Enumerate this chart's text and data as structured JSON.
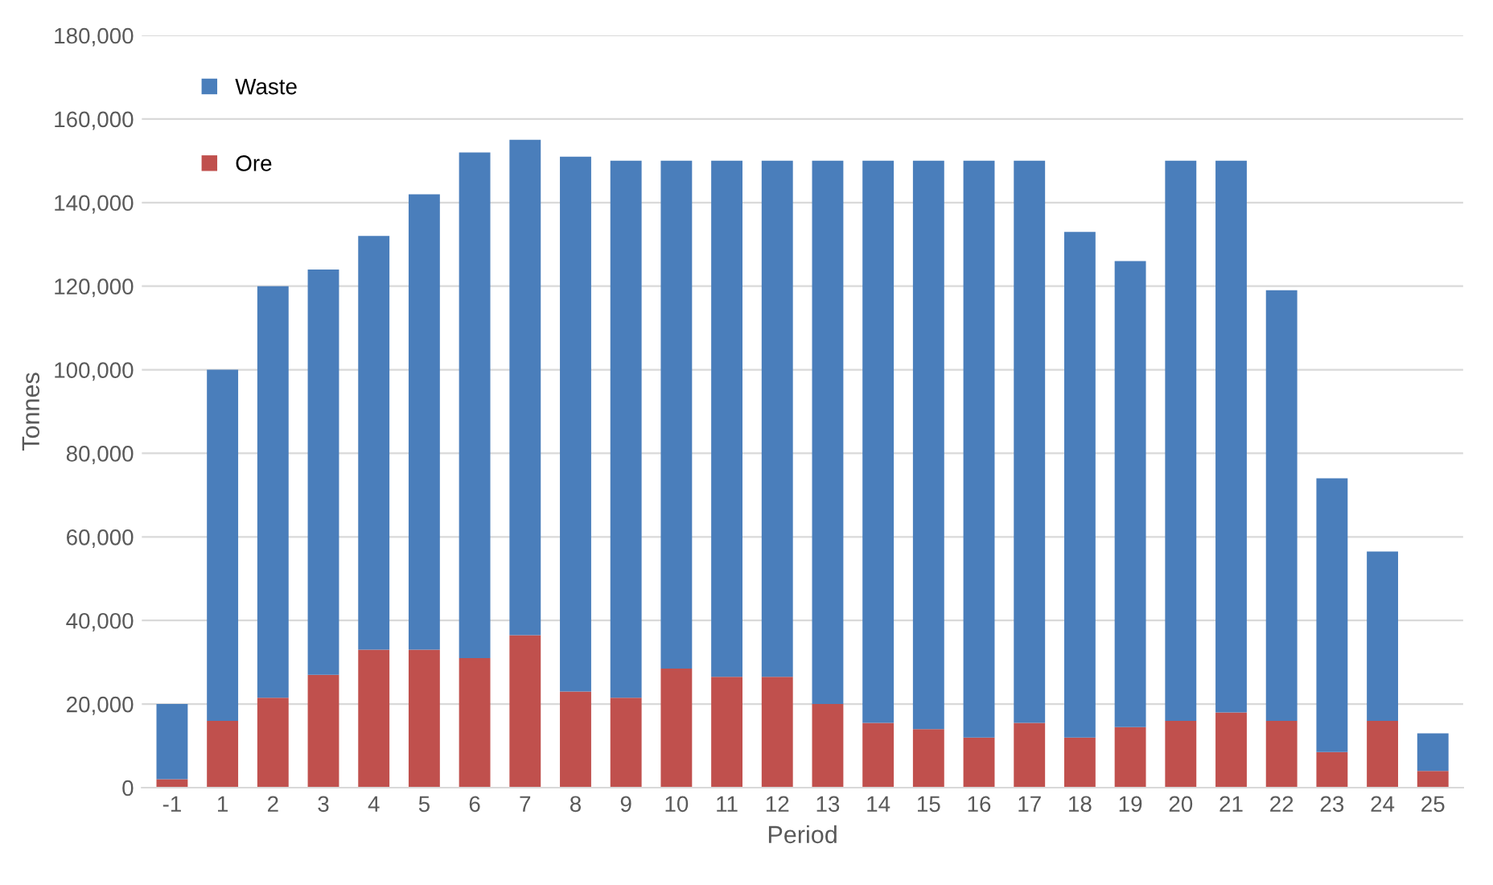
{
  "chart_data": {
    "type": "bar",
    "stacked": true,
    "xlabel": "Period",
    "ylabel": "Tonnes",
    "categories": [
      "-1",
      "1",
      "2",
      "3",
      "4",
      "5",
      "6",
      "7",
      "8",
      "9",
      "10",
      "11",
      "12",
      "13",
      "14",
      "15",
      "16",
      "17",
      "18",
      "19",
      "20",
      "21",
      "22",
      "23",
      "24",
      "25"
    ],
    "series": [
      {
        "name": "Ore",
        "color": "#c0504d",
        "values": [
          2000,
          16000,
          21500,
          27000,
          33000,
          33000,
          31000,
          36500,
          23000,
          21500,
          28500,
          26500,
          26500,
          20000,
          15500,
          14000,
          12000,
          15500,
          12000,
          14500,
          16000,
          18000,
          16000,
          8500,
          16000,
          4000
        ]
      },
      {
        "name": "Waste",
        "color": "#4a7ebb",
        "values": [
          18000,
          84000,
          98500,
          97000,
          99000,
          109000,
          121000,
          118500,
          128000,
          128500,
          121500,
          123500,
          123500,
          130000,
          134500,
          136000,
          138000,
          134500,
          121000,
          111500,
          134000,
          132000,
          103000,
          65500,
          40500,
          9000
        ]
      }
    ],
    "ylim": [
      0,
      180000
    ],
    "yticks": [
      {
        "value": 0,
        "label": "0"
      },
      {
        "value": 20000,
        "label": "20,000"
      },
      {
        "value": 40000,
        "label": "40,000"
      },
      {
        "value": 60000,
        "label": "60,000"
      },
      {
        "value": 80000,
        "label": "80,000"
      },
      {
        "value": 100000,
        "label": "100,000"
      },
      {
        "value": 120000,
        "label": "120,000"
      },
      {
        "value": 140000,
        "label": "140,000"
      },
      {
        "value": 160000,
        "label": "160,000"
      },
      {
        "value": 180000,
        "label": "180,000"
      }
    ],
    "grid": "y",
    "legend": "top left"
  }
}
